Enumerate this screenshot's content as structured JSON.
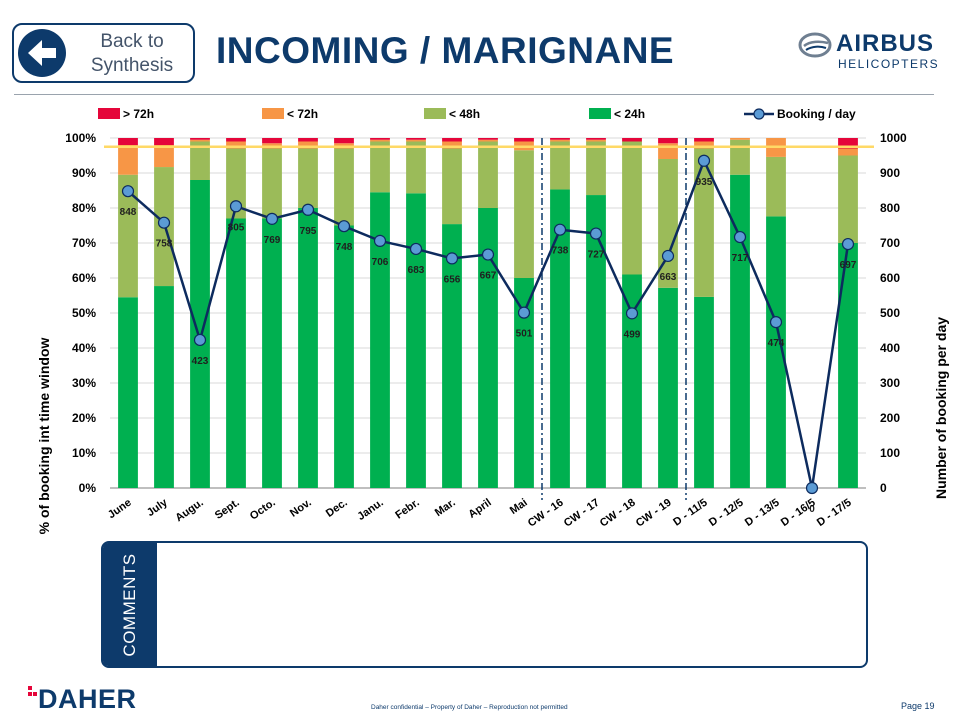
{
  "nav": {
    "back_label_line1": "Back to",
    "back_label_line2": "Synthesis"
  },
  "header": {
    "title": "INCOMING / MARIGNANE",
    "logo_name": "AIRBUS",
    "logo_sub": "HELICOPTERS"
  },
  "colors": {
    "navy": "#0d3a6b",
    "gt72h": "#e5053a",
    "lt72h": "#f79646",
    "lt48h": "#9bbb59",
    "lt24h": "#00b050",
    "threshold": "#ffd966",
    "line": "#0d2b5e",
    "marker": "#5b9bd5"
  },
  "chart_data": {
    "type": "bar",
    "stacked": true,
    "categories": [
      "June",
      "July",
      "Augu.",
      "Sept.",
      "Octo.",
      "Nov.",
      "Dec.",
      "Janu.",
      "Febr.",
      "Mar.",
      "April",
      "Mai",
      "CW - 16",
      "CW - 17",
      "CW - 18",
      "CW - 19",
      "D - 11/5",
      "D - 12/5",
      "D - 13/5",
      "D - 16/5",
      "D - 17/5"
    ],
    "series": [
      {
        "name": "< 24h",
        "values": [
          54.5,
          57.7,
          88.0,
          77.0,
          77.0,
          80.0,
          75.0,
          84.5,
          84.2,
          75.4,
          80.0,
          60.0,
          85.3,
          83.7,
          61.0,
          57.2,
          54.6,
          89.5,
          77.6,
          0,
          70.0
        ]
      },
      {
        "name": "< 48h",
        "values": [
          35.0,
          34.0,
          11.0,
          20.0,
          20.0,
          17.0,
          22.0,
          14.5,
          14.8,
          21.6,
          19.0,
          36.5,
          13.7,
          15.3,
          38.0,
          36.8,
          42.4,
          10.0,
          17.0,
          0,
          25.0
        ]
      },
      {
        "name": "< 72h",
        "values": [
          8.5,
          6.3,
          0.5,
          2.0,
          1.5,
          2.0,
          1.5,
          0.5,
          0.5,
          2.0,
          0.5,
          2.5,
          0.5,
          0.5,
          0,
          4.5,
          2.0,
          0.5,
          5.4,
          0,
          2.0
        ]
      },
      {
        "name": "> 72h",
        "values": [
          2.0,
          2.0,
          0.5,
          1.0,
          1.5,
          1.0,
          1.5,
          0.5,
          0.5,
          1.0,
          0.5,
          1.0,
          0.5,
          0.5,
          1.0,
          1.5,
          1.0,
          0,
          0,
          0,
          3.0
        ]
      }
    ],
    "line_series": {
      "name": "Booking / day",
      "values": [
        848,
        758,
        423,
        805,
        769,
        795,
        748,
        706,
        683,
        656,
        667,
        501,
        738,
        727,
        499,
        663,
        935,
        717,
        474,
        0,
        697
      ]
    },
    "labels": [
      "848",
      "758",
      "423",
      "805",
      "769",
      "795",
      "748",
      "706",
      "683",
      "656",
      "667",
      "501",
      "738",
      "727",
      "499",
      "663",
      "935",
      "717",
      "474",
      "0",
      "697"
    ],
    "threshold_percent": 97.5,
    "separators_after": [
      "Mai",
      "CW - 19"
    ],
    "ylabel_left": "% of booking int time window",
    "ylabel_right": "Number of booking per day",
    "ylim_left": [
      0,
      100
    ],
    "ylim_right": [
      0,
      1000
    ],
    "yticks_left": [
      "0%",
      "10%",
      "20%",
      "30%",
      "40%",
      "50%",
      "60%",
      "70%",
      "80%",
      "90%",
      "100%"
    ],
    "yticks_right": [
      "0",
      "100",
      "200",
      "300",
      "400",
      "500",
      "600",
      "700",
      "800",
      "900",
      "1000"
    ],
    "legend": [
      "> 72h",
      "< 72h",
      "< 48h",
      "< 24h",
      "Booking / day"
    ],
    "legend_position": "top"
  },
  "comments": {
    "label": "COMMENTS",
    "body": ""
  },
  "footer": {
    "company": "DAHER",
    "note": "Daher confidential – Property of Daher – Reproduction not permitted",
    "page": "Page 19"
  }
}
